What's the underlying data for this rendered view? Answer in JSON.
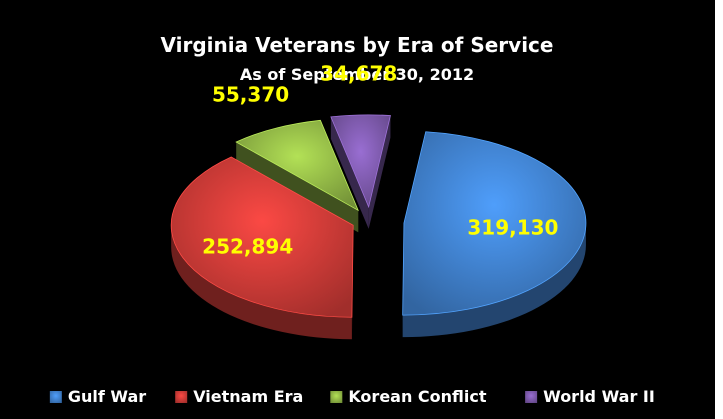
{
  "chart_data": {
    "type": "pie",
    "title": "Virginia Veterans by Era of Service",
    "subtitle": "As of September 30, 2012",
    "categories": [
      "Gulf War",
      "Vietnam Era",
      "Korean Conflict",
      "World War II"
    ],
    "values": [
      319130,
      252894,
      55370,
      34678
    ],
    "data_labels": [
      "319,130",
      "252,894",
      "55,370",
      "34,678"
    ],
    "colors": [
      "#3f7ec9",
      "#c93a36",
      "#8fb445",
      "#7a58a8"
    ],
    "label_color": "#ffff00",
    "legend_position": "bottom",
    "exploded": true,
    "style": "3d"
  }
}
